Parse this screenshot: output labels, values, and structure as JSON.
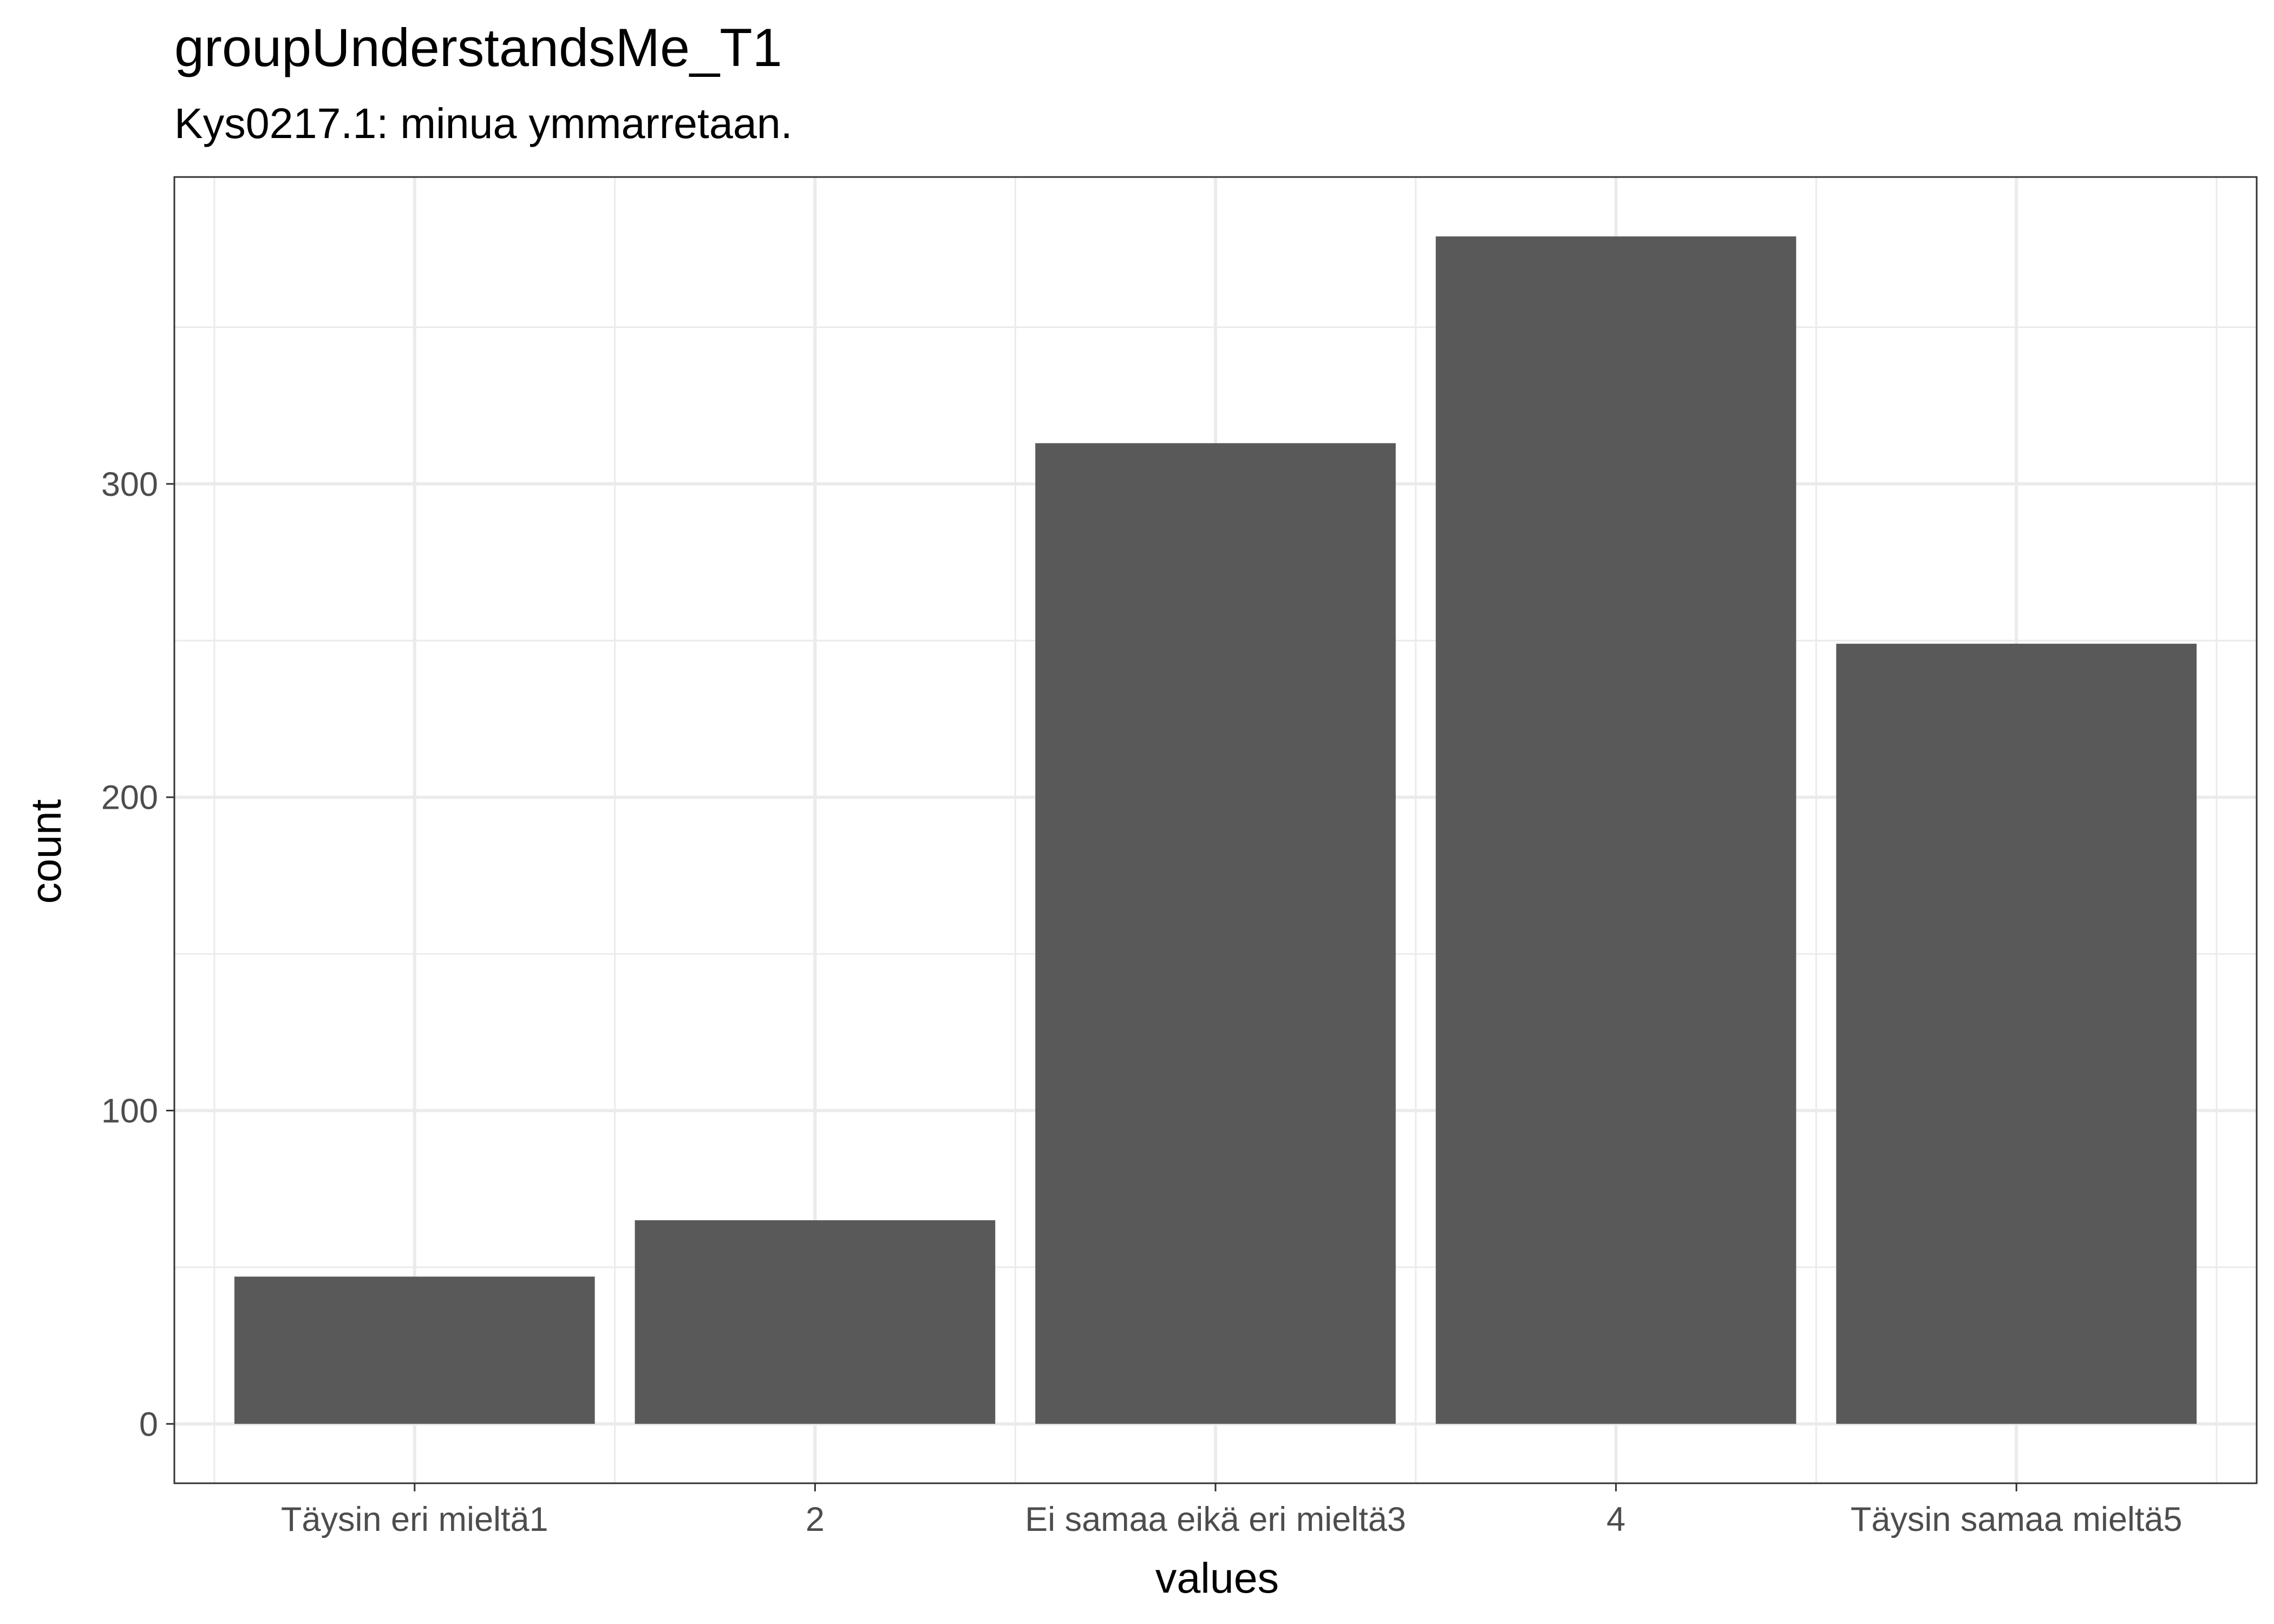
{
  "chart_data": {
    "type": "bar",
    "title": "groupUnderstandsMe_T1",
    "subtitle": "Kys0217.1: minua ymmarretaan.",
    "xlabel": "values",
    "ylabel": "count",
    "categories": [
      "Täysin eri mieltä1",
      "2",
      "Ei samaa eikä eri mieltä3",
      "4",
      "Täysin samaa mieltä5"
    ],
    "values": [
      47,
      65,
      313,
      379,
      249
    ],
    "ylim": [
      -18.95,
      397.95
    ],
    "yticks": [
      0,
      100,
      200,
      300
    ],
    "grid": true,
    "bar_color": "#595959",
    "grid_color": "#ebebeb",
    "panel_border_color": "#333333"
  }
}
